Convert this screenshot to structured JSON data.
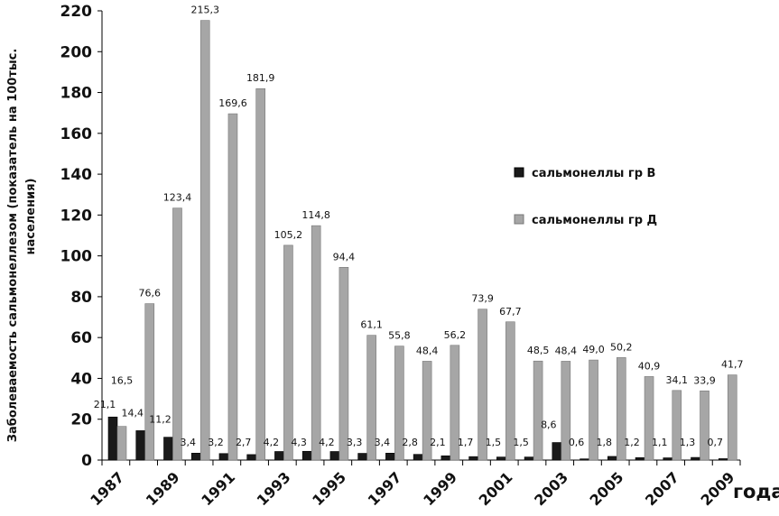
{
  "chart_data": {
    "type": "bar",
    "title": "",
    "xlabel": "года",
    "ylabel": "Заболеваемость сальмонеллезом (показатель на 100тыс. населения)",
    "ylabel_lines": [
      "Заболеваемость сальмонеллезом (показатель на 100тыс.",
      "населения)"
    ],
    "ylim": [
      0,
      220
    ],
    "yticks": [
      0,
      20,
      40,
      60,
      80,
      100,
      120,
      140,
      160,
      180,
      200,
      220
    ],
    "grid": false,
    "legend_position": "right",
    "categories": [
      1987,
      1988,
      1989,
      1990,
      1991,
      1992,
      1993,
      1994,
      1995,
      1996,
      1997,
      1998,
      1999,
      2000,
      2001,
      2002,
      2003,
      2004,
      2005,
      2006,
      2007,
      2008,
      2009
    ],
    "xtick_labels": [
      "1987",
      "1989",
      "1991",
      "1993",
      "1995",
      "1997",
      "1999",
      "2001",
      "2003",
      "2005",
      "2007",
      "2009"
    ],
    "series": [
      {
        "name": "сальмонеллы гр В",
        "color": "#1a1a1a",
        "values": [
          21.1,
          14.4,
          11.2,
          3.4,
          3.2,
          2.7,
          4.2,
          4.3,
          4.2,
          3.3,
          3.4,
          2.8,
          2.1,
          1.7,
          1.5,
          1.5,
          8.6,
          0.6,
          1.8,
          1.2,
          1.1,
          1.3,
          0.7
        ]
      },
      {
        "name": "сальмонеллы гр Д",
        "color": "#a6a6a6",
        "values": [
          16.5,
          76.6,
          123.4,
          215.3,
          169.6,
          181.9,
          105.2,
          114.8,
          94.4,
          61.1,
          55.8,
          48.4,
          56.2,
          73.9,
          67.7,
          48.5,
          48.4,
          49.0,
          50.2,
          40.9,
          34.1,
          33.9,
          41.7
        ]
      }
    ]
  }
}
